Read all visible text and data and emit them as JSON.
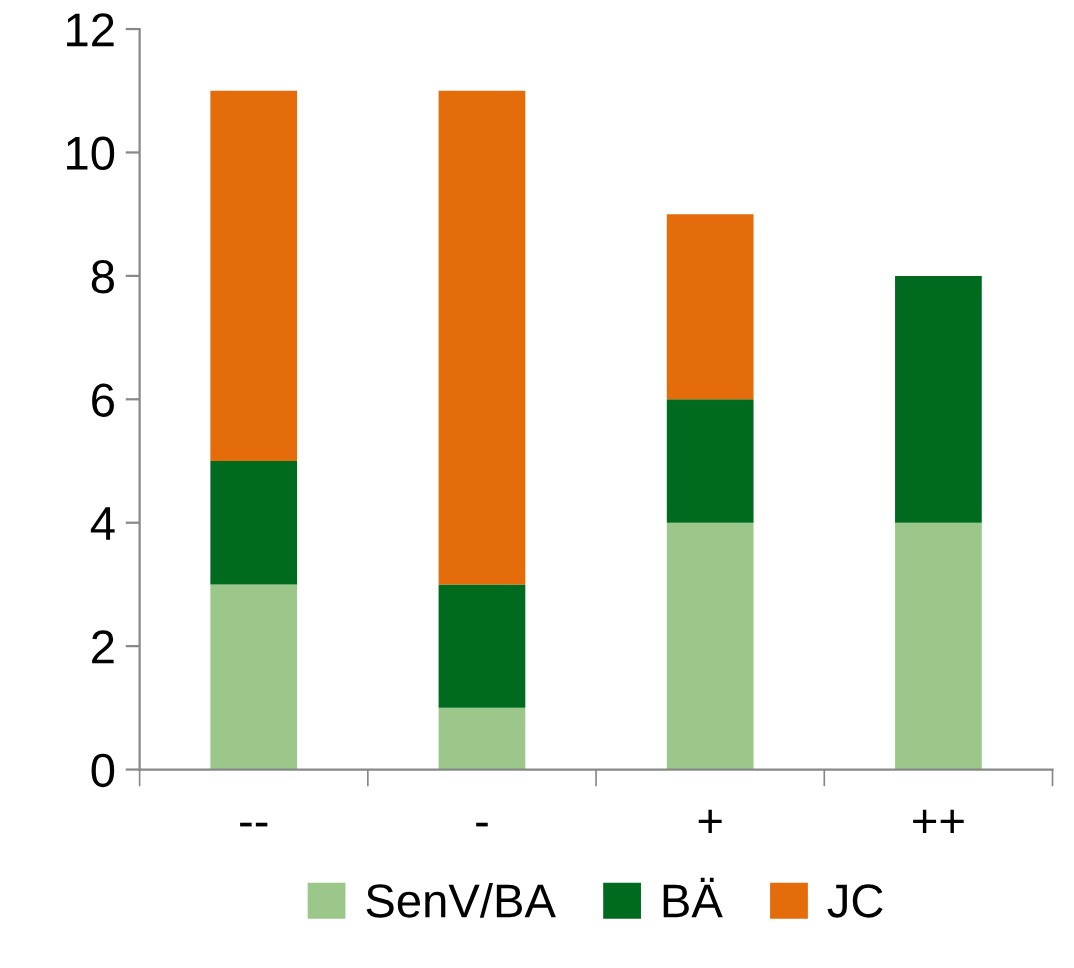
{
  "chart_data": {
    "type": "bar",
    "stacked": true,
    "categories": [
      "--",
      "-",
      "+",
      "++"
    ],
    "series": [
      {
        "name": "SenV/BA",
        "color": "#9bc88a",
        "values": [
          3,
          1,
          4,
          4
        ]
      },
      {
        "name": "BÄ",
        "color": "#006b1f",
        "values": [
          2,
          2,
          2,
          4
        ]
      },
      {
        "name": "JC",
        "color": "#e46c0a",
        "values": [
          6,
          8,
          3,
          0
        ]
      }
    ],
    "ylim": [
      0,
      12
    ],
    "yticks": [
      0,
      2,
      4,
      6,
      8,
      10,
      12
    ],
    "grid": false,
    "legend": "bottom"
  }
}
